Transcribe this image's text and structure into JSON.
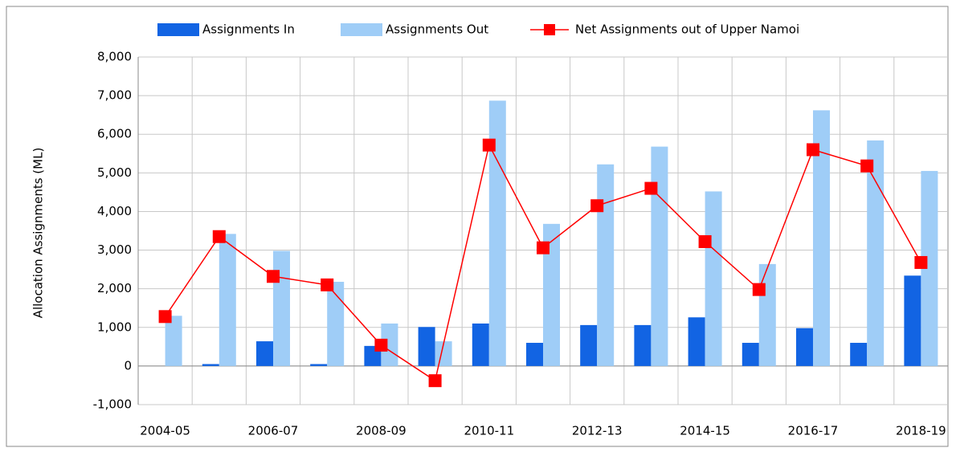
{
  "chart_data": {
    "type": "bar-line",
    "y_axis_label": "Allocation Assignments (ML)",
    "categories": [
      "2004-05",
      null,
      "2006-07",
      null,
      "2008-09",
      null,
      "2010-11",
      null,
      "2012-13",
      null,
      "2014-15",
      null,
      "2016-17",
      null,
      "2018-19"
    ],
    "series": [
      {
        "name": "Assignments In",
        "type": "bar",
        "color": "#1264e3",
        "values": [
          0,
          50,
          640,
          50,
          520,
          1010,
          1100,
          600,
          1060,
          1060,
          1260,
          600,
          980,
          600,
          2340
        ]
      },
      {
        "name": "Assignments Out",
        "type": "bar",
        "color": "#9fcdf7",
        "values": [
          1300,
          3420,
          2980,
          2180,
          1100,
          640,
          6870,
          3680,
          5220,
          5680,
          4520,
          2640,
          6620,
          5840,
          5050
        ]
      },
      {
        "name": "Net Assignments out of Upper Namoi",
        "type": "line",
        "color": "#ff0000",
        "values": [
          1280,
          3350,
          2320,
          2100,
          540,
          -380,
          5720,
          3060,
          4150,
          4600,
          3220,
          1980,
          5600,
          5180,
          2680
        ]
      }
    ],
    "ylim": [
      -1000,
      8000
    ],
    "yticks": [
      {
        "value": -1000,
        "label": "-1,000"
      },
      0,
      {
        "value": 1000,
        "label": "1,000"
      },
      {
        "value": 2000,
        "label": "2,000"
      },
      {
        "value": 3000,
        "label": "3,000"
      },
      {
        "value": 4000,
        "label": "4,000"
      },
      {
        "value": 5000,
        "label": "5,000"
      },
      {
        "value": 6000,
        "label": "6,000"
      },
      {
        "value": 7000,
        "label": "7,000"
      },
      {
        "value": 8000,
        "label": "8,000"
      }
    ],
    "grid": true,
    "legend": "top"
  }
}
